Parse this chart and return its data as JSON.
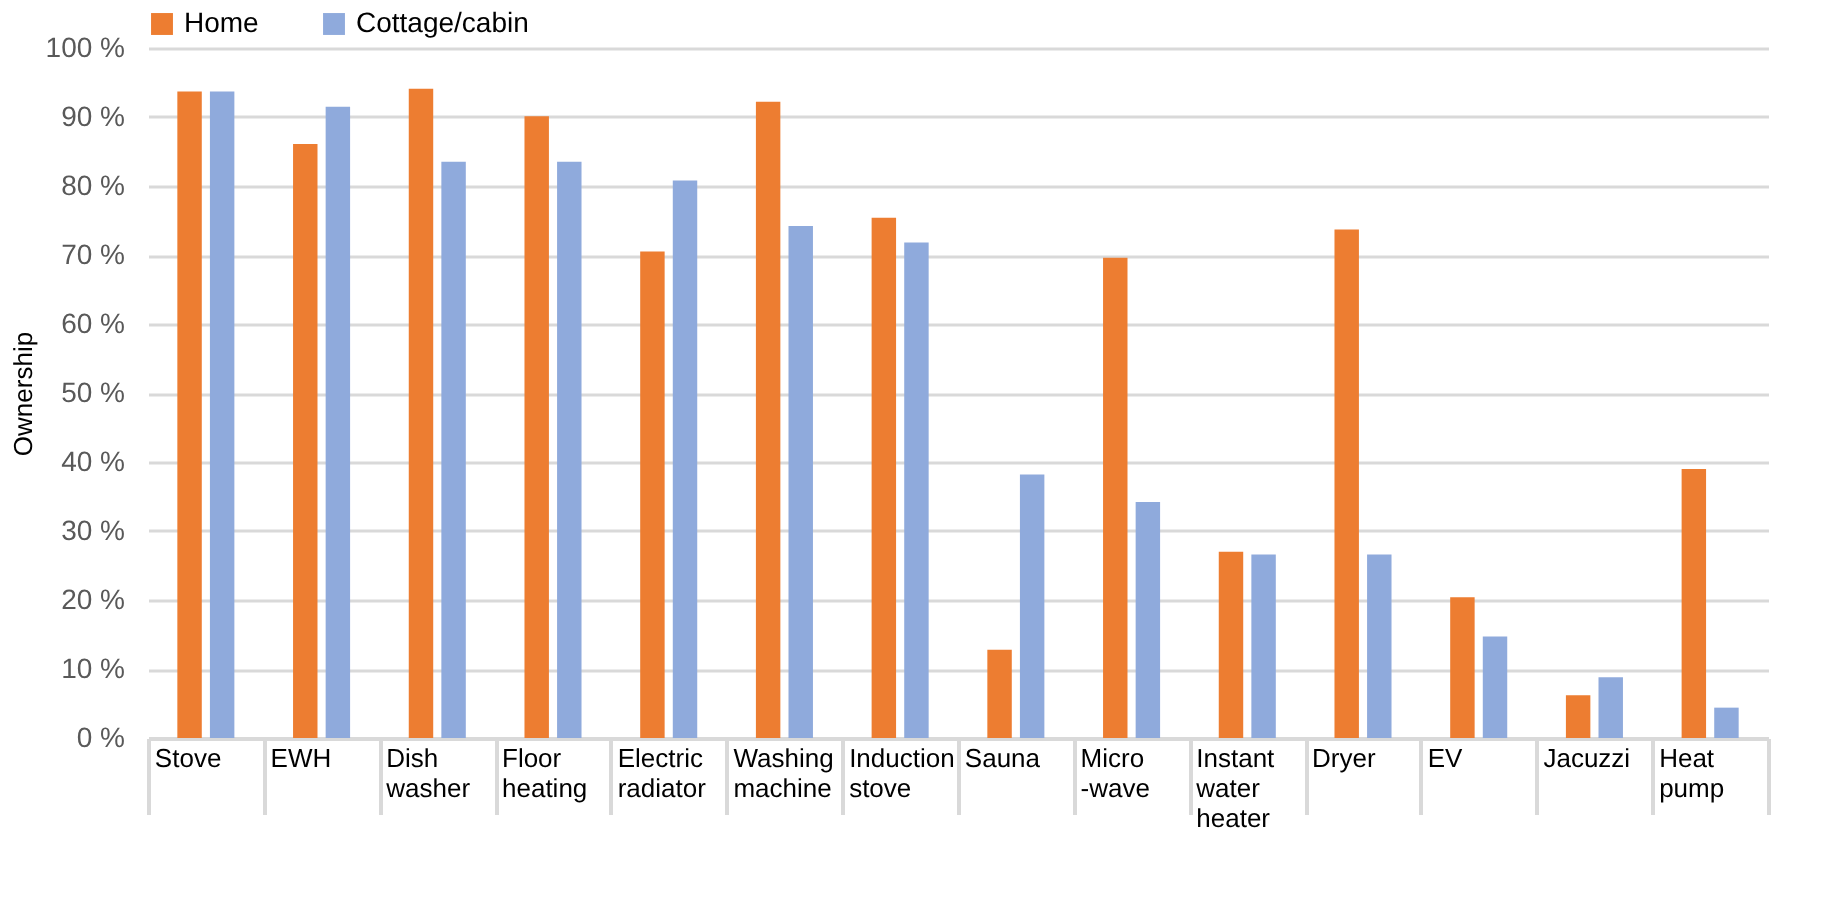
{
  "chart_data": {
    "type": "bar",
    "ylabel": "Ownership",
    "categories": [
      "Stove",
      "EWH",
      "Dish\nwasher",
      "Floor\nheating",
      "Electric\nradiator",
      "Washing machine",
      "Induction\nstove",
      "Sauna",
      "Micro\n-wave",
      "Instant\nwater\nheater",
      "Dryer",
      "EV",
      "Jacuzzi",
      "Heat\npump"
    ],
    "series": [
      {
        "name": "Home",
        "color": "#ed7d31",
        "values": [
          93.7,
          86.1,
          94.1,
          90.1,
          70.5,
          92.2,
          75.4,
          12.8,
          69.6,
          27.0,
          73.7,
          20.4,
          6.2,
          39.0
        ]
      },
      {
        "name": "Cottage/cabin",
        "color": "#8faadc",
        "values": [
          93.7,
          91.5,
          83.5,
          83.5,
          80.8,
          74.2,
          71.8,
          38.2,
          34.2,
          26.6,
          26.6,
          14.7,
          8.8,
          4.4
        ]
      }
    ],
    "ylim": [
      0,
      100
    ],
    "yticks": [
      {
        "value": 0,
        "label": "0 %"
      },
      {
        "value": 10,
        "label": "10 %"
      },
      {
        "value": 20,
        "label": "20 %"
      },
      {
        "value": 30,
        "label": "30 %"
      },
      {
        "value": 40,
        "label": "40 %"
      },
      {
        "value": 50,
        "label": "50 %"
      },
      {
        "value": 60,
        "label": "60 %"
      },
      {
        "value": 70,
        "label": "70 %"
      },
      {
        "value": 80,
        "label": "80 %"
      },
      {
        "value": 90,
        "label": "90 %"
      },
      {
        "value": 100,
        "label": "100 %"
      }
    ],
    "grid": "y",
    "legend": "top"
  }
}
